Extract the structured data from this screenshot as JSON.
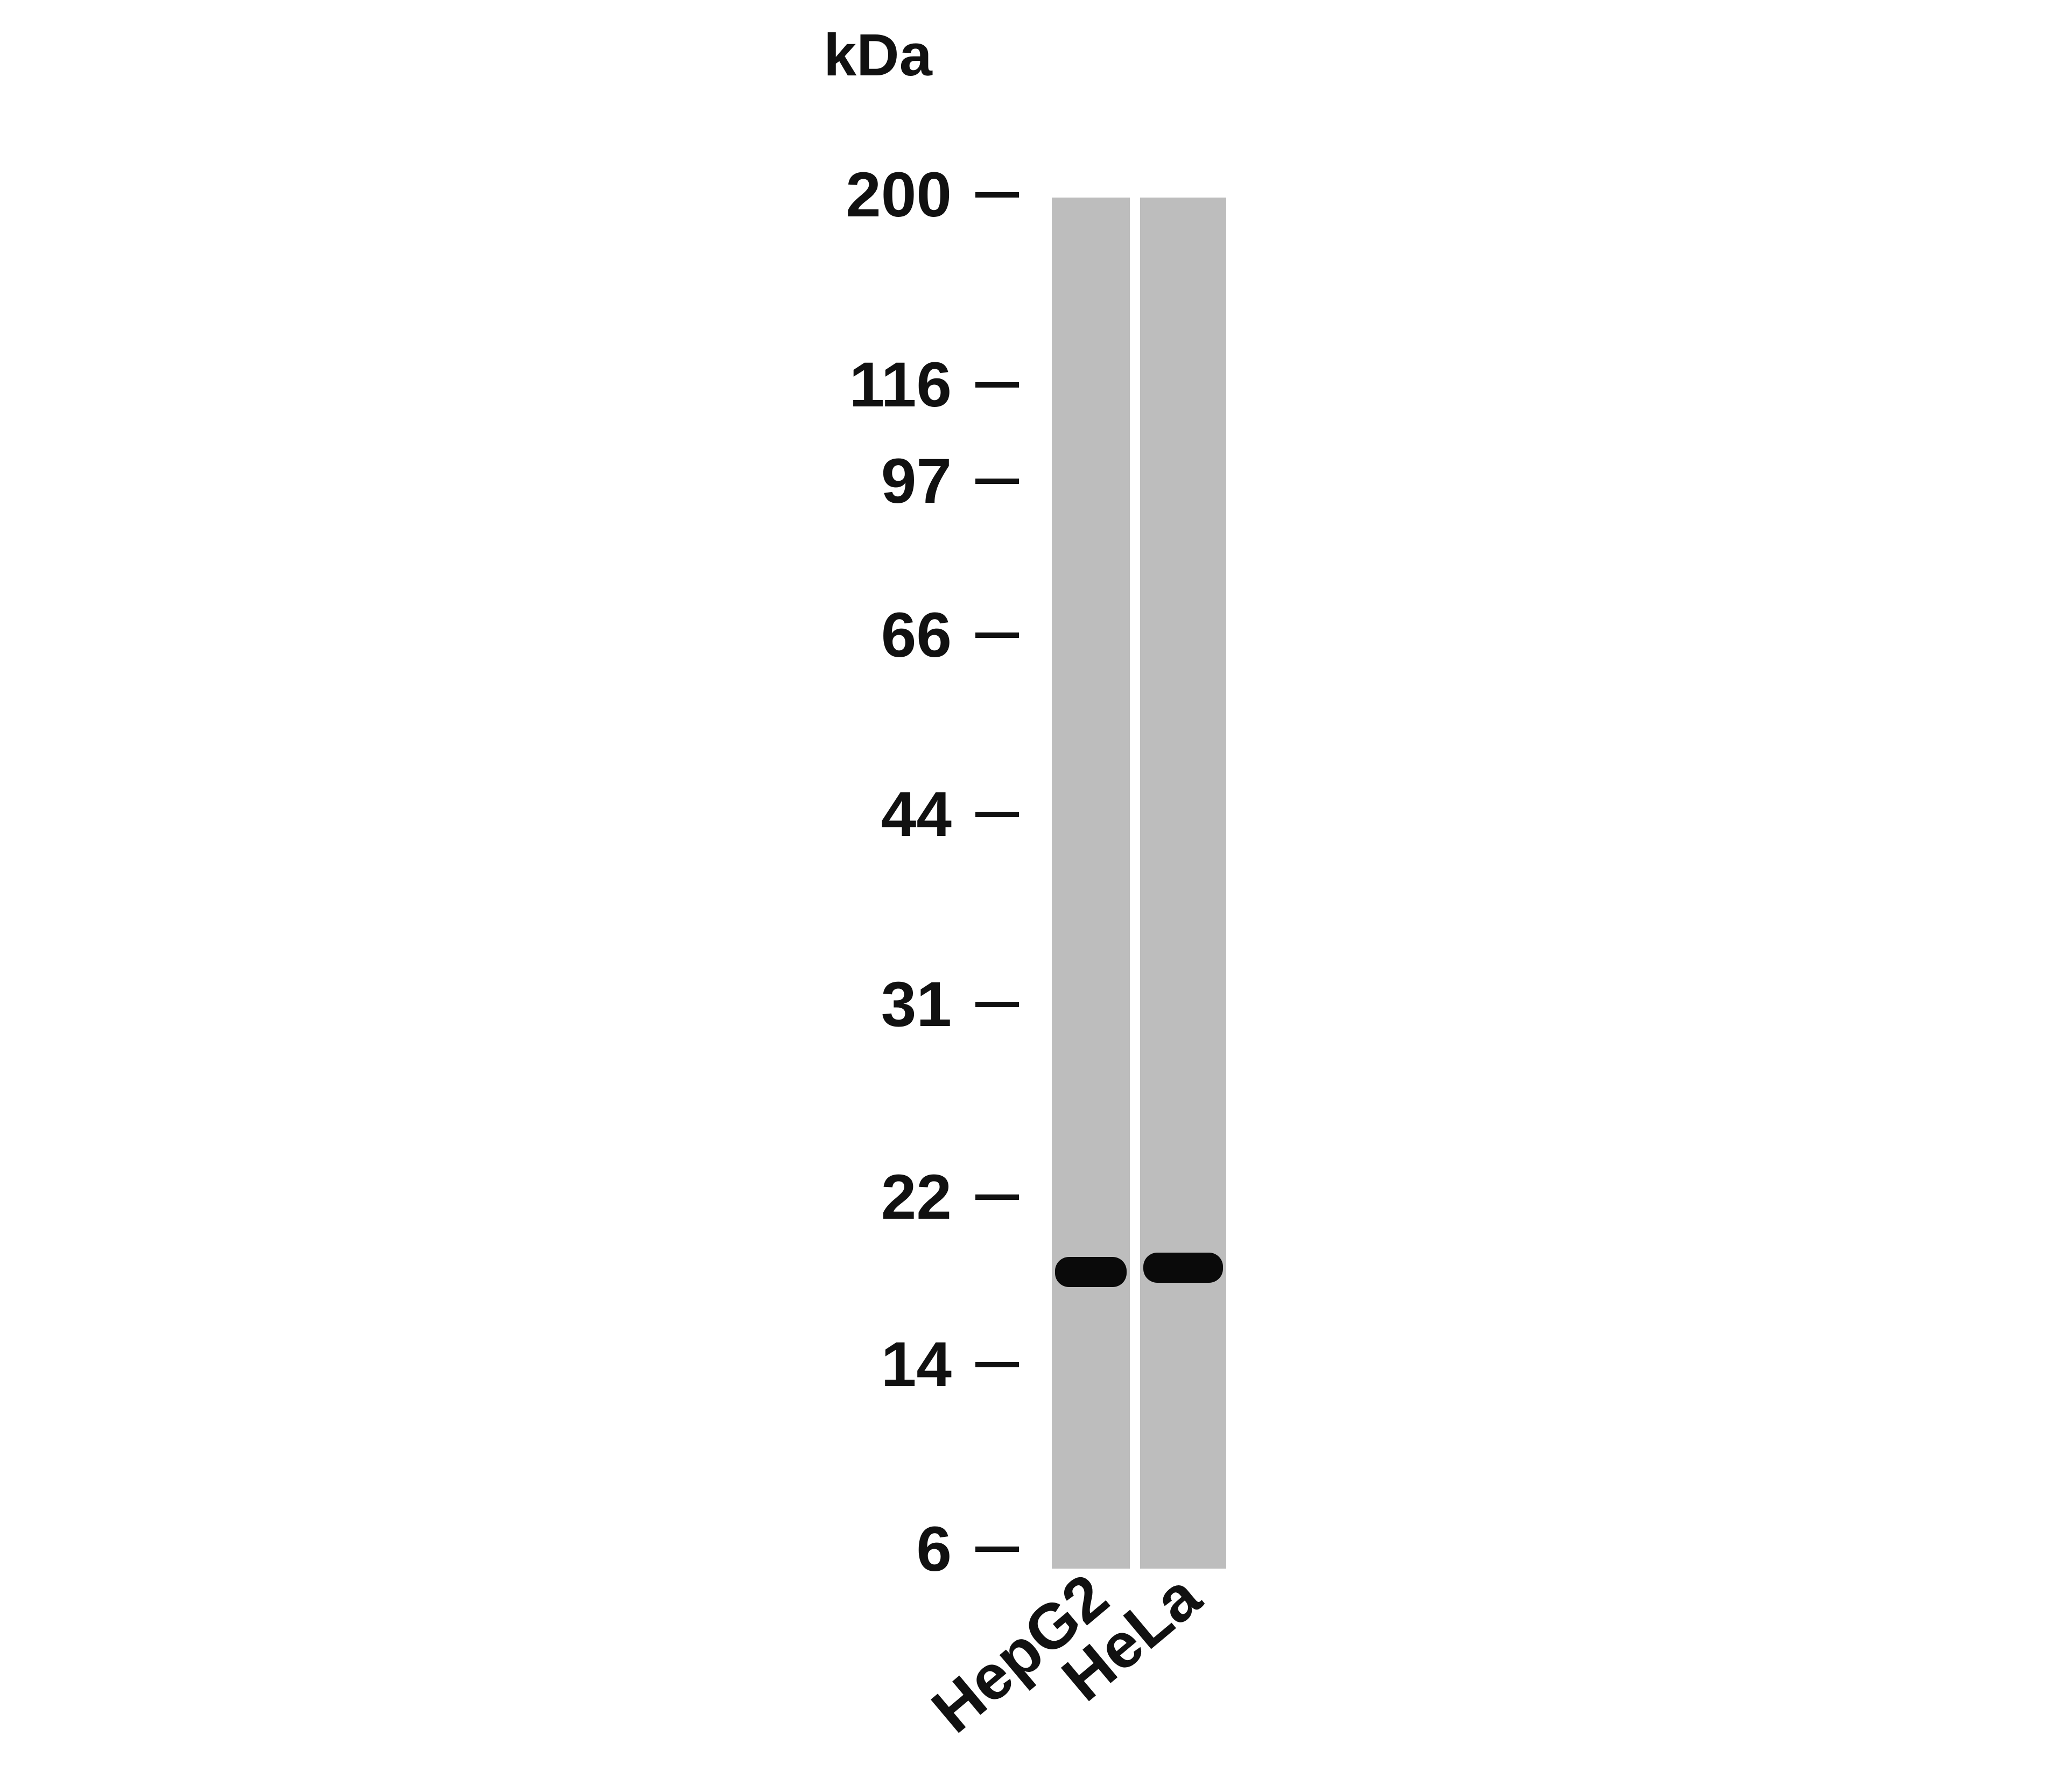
{
  "unit_label": "kDa",
  "markers": [
    {
      "label": "200",
      "kda": 200
    },
    {
      "label": "116",
      "kda": 116
    },
    {
      "label": "97",
      "kda": 97
    },
    {
      "label": "66",
      "kda": 66
    },
    {
      "label": "44",
      "kda": 44
    },
    {
      "label": "31",
      "kda": 31
    },
    {
      "label": "22",
      "kda": 22
    },
    {
      "label": "14",
      "kda": 14
    },
    {
      "label": "6",
      "kda": 6
    }
  ],
  "lanes": [
    {
      "label": "HepG2",
      "band_kda": 18
    },
    {
      "label": "HeLa",
      "band_kda": 18
    }
  ],
  "colors": {
    "lane": "#bdbdbd",
    "band": "#0a0a0a",
    "background": "#ffffff"
  }
}
